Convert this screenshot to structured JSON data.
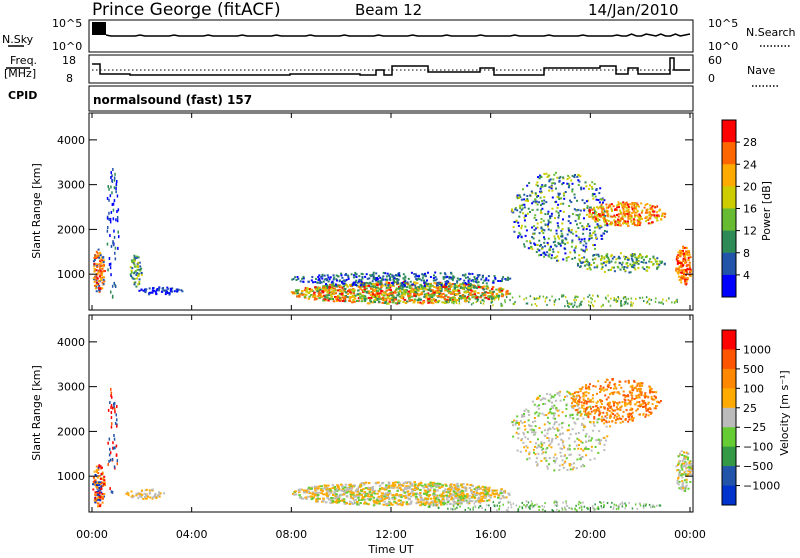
{
  "header": {
    "station": "Prince George (fitACF)",
    "beam": "Beam 12",
    "date": "14/Jan/2010"
  },
  "noise_panel": {
    "left_label": "N.Sky",
    "right_label": "N.Search",
    "left_ticks": [
      "10^5",
      "10^0"
    ],
    "right_ticks": [
      "10^5",
      "10^0"
    ]
  },
  "freq_panel": {
    "left_label_1": "Freq.",
    "left_label_2": "[MHz]",
    "right_label": "Nave",
    "left_ticks": [
      "18",
      "8"
    ],
    "right_ticks": [
      "60",
      "0"
    ]
  },
  "cpid": {
    "label": "CPID",
    "value": "normalsound (fast) 157"
  },
  "chart_data": [
    {
      "type": "heatmap",
      "name": "power",
      "ylabel": "Slant Range [km]",
      "colorbar_label": "Power [dB]",
      "y_ticks": [
        "1000",
        "2000",
        "3000",
        "4000"
      ],
      "ylim": [
        200,
        4600
      ],
      "colorbar_ticks": [
        "4",
        "8",
        "12",
        "16",
        "20",
        "24",
        "28"
      ],
      "colors": [
        "#0000ff",
        "#2255aa",
        "#2e8b57",
        "#66bb33",
        "#cccc00",
        "#ffaa00",
        "#ff6600",
        "#ff0000"
      ]
    },
    {
      "type": "heatmap",
      "name": "velocity",
      "ylabel": "Slant Range [km]",
      "colorbar_label": "Velocity [m s⁻¹]",
      "y_ticks": [
        "1000",
        "2000",
        "3000",
        "4000"
      ],
      "ylim": [
        200,
        4600
      ],
      "colorbar_ticks": [
        "1000",
        "500",
        "100",
        "25",
        "−25",
        "−100",
        "−500",
        "−1000"
      ],
      "colors": [
        "#0033cc",
        "#2255aa",
        "#339944",
        "#66cc33",
        "#bbbbbb",
        "#ffaa00",
        "#ff8800",
        "#ff5500",
        "#ff0000"
      ],
      "xlabel": "Time UT",
      "x_ticks": [
        "00:00",
        "04:00",
        "08:00",
        "12:00",
        "16:00",
        "20:00",
        "00:00"
      ]
    }
  ]
}
